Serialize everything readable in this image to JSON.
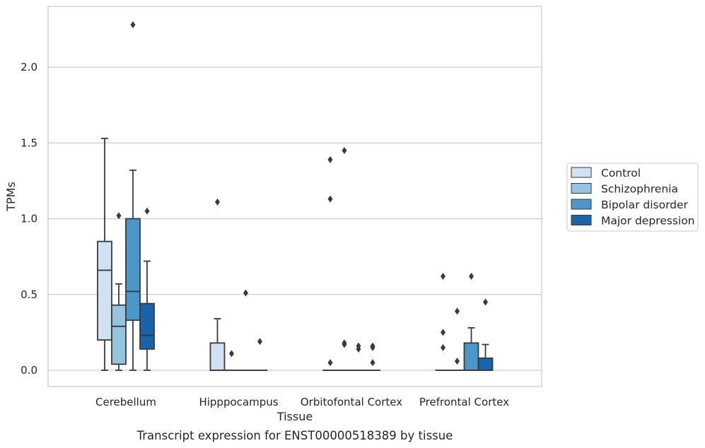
{
  "chart_data": {
    "type": "box",
    "xlabel": "Tissue",
    "ylabel": "TPMs",
    "caption": "Transcript expression for ENST00000518389 by tissue",
    "ylim": [
      -0.11,
      2.4
    ],
    "yticks": [
      "0.0",
      "0.5",
      "1.0",
      "1.5",
      "2.0"
    ],
    "grid": "horizontal",
    "legend_position": "right",
    "categories": [
      "Cerebellum",
      "Hipppocampus",
      "Orbitofontal Cortex",
      "Prefrontal Cortex"
    ],
    "series": [
      {
        "name": "Control",
        "color": "#d0e1f2"
      },
      {
        "name": "Schizophrenia",
        "color": "#94c4df"
      },
      {
        "name": "Bipolar disorder",
        "color": "#4a98c9"
      },
      {
        "name": "Major depression",
        "color": "#1764ab"
      }
    ],
    "boxes": [
      [
        {
          "whislo": 0,
          "q1": 0.2,
          "med": 0.66,
          "q3": 0.85,
          "whishi": 1.53,
          "fliers": []
        },
        {
          "whislo": 0,
          "q1": 0.04,
          "med": 0.29,
          "q3": 0.43,
          "whishi": 0.57,
          "fliers": [
            1.02
          ]
        },
        {
          "whislo": 0,
          "q1": 0.33,
          "med": 0.52,
          "q3": 1.0,
          "whishi": 1.32,
          "fliers": [
            2.28
          ]
        },
        {
          "whislo": 0,
          "q1": 0.14,
          "med": 0.23,
          "q3": 0.44,
          "whishi": 0.72,
          "fliers": [
            1.05
          ]
        }
      ],
      [
        {
          "whislo": 0,
          "q1": 0,
          "med": 0,
          "q3": 0.18,
          "whishi": 0.34,
          "fliers": [
            1.11
          ]
        },
        {
          "whislo": 0,
          "q1": 0,
          "med": 0,
          "q3": 0,
          "whishi": 0,
          "fliers": [
            0.11
          ]
        },
        {
          "whislo": 0,
          "q1": 0,
          "med": 0,
          "q3": 0,
          "whishi": 0,
          "fliers": [
            0.51
          ]
        },
        {
          "whislo": 0,
          "q1": 0,
          "med": 0,
          "q3": 0,
          "whishi": 0,
          "fliers": [
            0.19
          ]
        }
      ],
      [
        {
          "whislo": 0,
          "q1": 0,
          "med": 0,
          "q3": 0,
          "whishi": 0,
          "fliers": [
            0.05,
            1.13,
            1.39
          ]
        },
        {
          "whislo": 0,
          "q1": 0,
          "med": 0,
          "q3": 0,
          "whishi": 0,
          "fliers": [
            0.17,
            0.18,
            1.45
          ]
        },
        {
          "whislo": 0,
          "q1": 0,
          "med": 0,
          "q3": 0,
          "whishi": 0,
          "fliers": [
            0.14,
            0.16
          ]
        },
        {
          "whislo": 0,
          "q1": 0,
          "med": 0,
          "q3": 0,
          "whishi": 0,
          "fliers": [
            0.05,
            0.15,
            0.16
          ]
        }
      ],
      [
        {
          "whislo": 0,
          "q1": 0,
          "med": 0,
          "q3": 0,
          "whishi": 0,
          "fliers": [
            0.15,
            0.25,
            0.62
          ]
        },
        {
          "whislo": 0,
          "q1": 0,
          "med": 0,
          "q3": 0,
          "whishi": 0,
          "fliers": [
            0.06,
            0.39
          ]
        },
        {
          "whislo": 0,
          "q1": 0,
          "med": 0,
          "q3": 0.18,
          "whishi": 0.28,
          "fliers": [
            0.62
          ]
        },
        {
          "whislo": 0,
          "q1": 0,
          "med": 0,
          "q3": 0.08,
          "whishi": 0.17,
          "fliers": [
            0.45
          ]
        }
      ]
    ]
  }
}
